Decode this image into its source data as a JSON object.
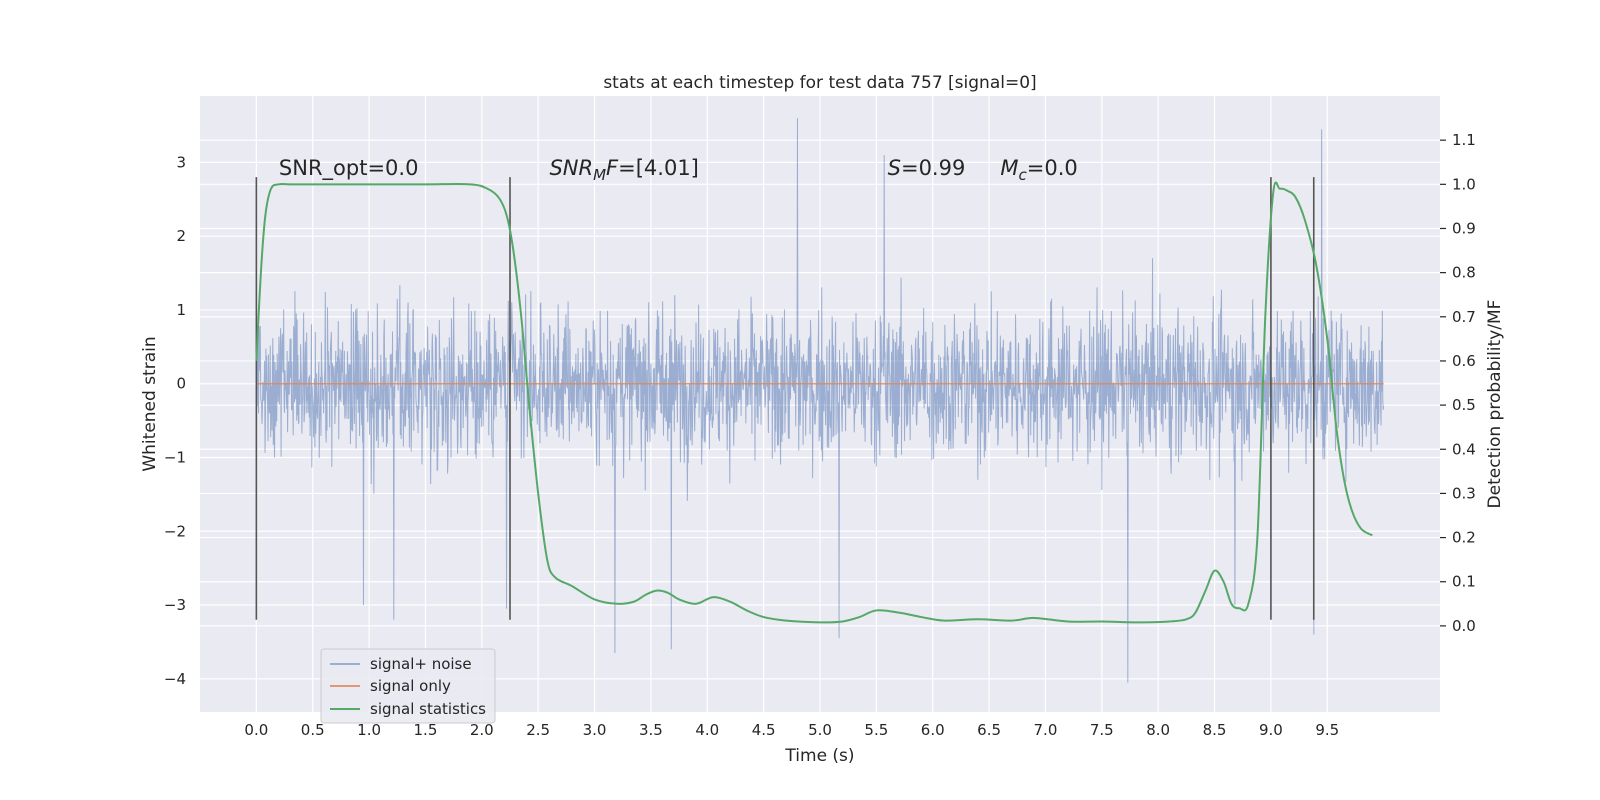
{
  "chart_data": {
    "type": "line",
    "title": "stats at each timestep for test data 757 [signal=0]",
    "xlabel": "Time (s)",
    "ylabel": "Whitened strain",
    "y2label": "Detection probability/MF",
    "xlim": [
      -0.5,
      10.5
    ],
    "ylim": [
      -4.45,
      3.9
    ],
    "y2lim": [
      -0.195,
      1.2
    ],
    "xticks": [
      0.0,
      0.5,
      1.0,
      1.5,
      2.0,
      2.5,
      3.0,
      3.5,
      4.0,
      4.5,
      5.0,
      5.5,
      6.0,
      6.5,
      7.0,
      7.5,
      8.0,
      8.5,
      9.0,
      9.5
    ],
    "xtick_labels": [
      "0.0",
      "0.5",
      "1.0",
      "1.5",
      "2.0",
      "2.5",
      "3.0",
      "3.5",
      "4.0",
      "4.5",
      "5.0",
      "5.5",
      "6.0",
      "6.5",
      "7.0",
      "7.5",
      "8.0",
      "8.5",
      "9.0",
      "9.5"
    ],
    "yticks": [
      -4,
      -3,
      -2,
      -1,
      0,
      1,
      2,
      3
    ],
    "ytick_labels": [
      "−4",
      "−3",
      "−2",
      "−1",
      "0",
      "1",
      "2",
      "3"
    ],
    "y2ticks": [
      0.0,
      0.1,
      0.2,
      0.3,
      0.4,
      0.5,
      0.6,
      0.7,
      0.8,
      0.9,
      1.0,
      1.1
    ],
    "y2tick_labels": [
      "0.0",
      "0.1",
      "0.2",
      "0.3",
      "0.4",
      "0.5",
      "0.6",
      "0.7",
      "0.8",
      "0.9",
      "1.0",
      "1.1"
    ],
    "grid": true,
    "legend_position": "lower-left",
    "colors": {
      "background": "#eaeaf2",
      "grid": "#ffffff",
      "noise": "#4c72b0",
      "signal": "#dd8452",
      "statistics": "#55a868",
      "markers": "#555555"
    },
    "series": [
      {
        "name": "signal+ noise",
        "kind": "noise",
        "x_range": [
          0.0,
          10.0
        ],
        "envelope": {
          "typical_low": -1.5,
          "typical_high": 1.6,
          "max": 3.6,
          "min": -4.05
        },
        "peaks": [
          {
            "x": 4.8,
            "y": 3.6
          },
          {
            "x": 9.45,
            "y": 3.45
          },
          {
            "x": 5.57,
            "y": 3.1
          },
          {
            "x": 7.73,
            "y": -4.05
          },
          {
            "x": 3.18,
            "y": -3.65
          },
          {
            "x": 3.68,
            "y": -3.6
          },
          {
            "x": 5.17,
            "y": -3.45
          },
          {
            "x": 9.38,
            "y": -3.4
          },
          {
            "x": 1.22,
            "y": -3.2
          },
          {
            "x": 2.22,
            "y": -3.05
          },
          {
            "x": 0.95,
            "y": -3.0
          },
          {
            "x": 8.68,
            "y": -3.0
          }
        ]
      },
      {
        "name": "signal only",
        "kind": "flat",
        "x": [
          0.0,
          10.0
        ],
        "y": [
          0.0,
          0.0
        ]
      },
      {
        "name": "signal statistics",
        "kind": "line",
        "axis": "right",
        "x": [
          0.0,
          0.04,
          0.08,
          0.13,
          0.2,
          0.3,
          0.5,
          1.0,
          1.5,
          1.9,
          2.05,
          2.15,
          2.22,
          2.28,
          2.35,
          2.42,
          2.5,
          2.58,
          2.65,
          2.8,
          3.0,
          3.2,
          3.35,
          3.45,
          3.55,
          3.65,
          3.75,
          3.9,
          4.05,
          4.2,
          4.35,
          4.5,
          4.7,
          5.0,
          5.2,
          5.35,
          5.5,
          5.7,
          5.9,
          6.1,
          6.4,
          6.7,
          6.9,
          7.2,
          7.5,
          7.8,
          8.1,
          8.25,
          8.33,
          8.42,
          8.5,
          8.58,
          8.65,
          8.72,
          8.8,
          8.88,
          8.95,
          9.02,
          9.08,
          9.15,
          9.22,
          9.3,
          9.4,
          9.5,
          9.58,
          9.65,
          9.72,
          9.8,
          9.9
        ],
        "y": [
          0.6,
          0.8,
          0.93,
          0.99,
          1.0,
          1.0,
          1.0,
          1.0,
          1.0,
          1.0,
          0.99,
          0.97,
          0.93,
          0.85,
          0.7,
          0.5,
          0.3,
          0.15,
          0.11,
          0.09,
          0.06,
          0.05,
          0.055,
          0.07,
          0.08,
          0.075,
          0.06,
          0.05,
          0.065,
          0.055,
          0.035,
          0.02,
          0.012,
          0.008,
          0.01,
          0.02,
          0.035,
          0.03,
          0.02,
          0.012,
          0.015,
          0.012,
          0.018,
          0.01,
          0.01,
          0.008,
          0.01,
          0.015,
          0.03,
          0.08,
          0.125,
          0.1,
          0.05,
          0.04,
          0.05,
          0.2,
          0.7,
          0.98,
          0.99,
          0.985,
          0.97,
          0.92,
          0.82,
          0.65,
          0.45,
          0.33,
          0.26,
          0.22,
          0.205
        ]
      }
    ],
    "vertical_markers": {
      "x": [
        0.0,
        2.25,
        9.0,
        9.38
      ],
      "y_range": [
        -3.2,
        2.8
      ]
    },
    "annotations": [
      {
        "x": 0.2,
        "y": 2.83,
        "text": "SNR_opt=0.0"
      },
      {
        "x": 2.6,
        "y": 2.83,
        "text_parts": [
          "SNR",
          "M",
          "F=[4.01]"
        ]
      },
      {
        "x": 5.6,
        "y": 2.83,
        "text_parts": [
          "S",
          "=0.99"
        ]
      },
      {
        "x": 6.6,
        "y": 2.83,
        "text_parts": [
          "M",
          "c",
          "=0.0"
        ]
      }
    ]
  }
}
